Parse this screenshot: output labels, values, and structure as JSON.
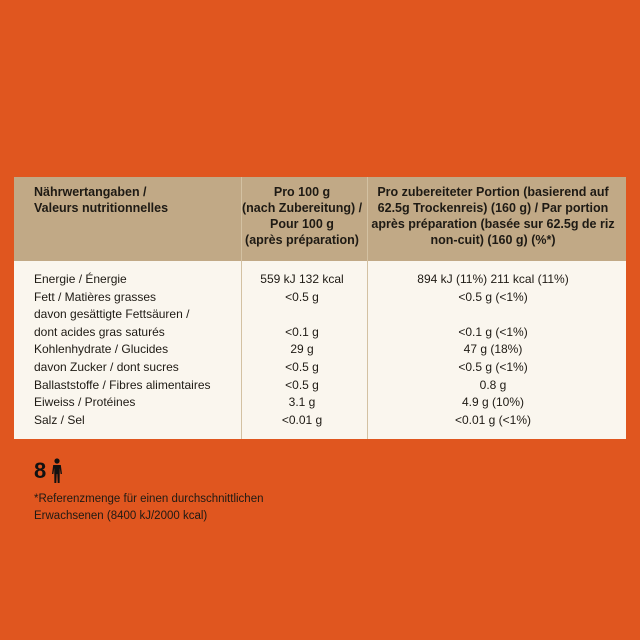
{
  "header": {
    "col1": [
      "Nährwertangaben /",
      "Valeurs nutritionnelles"
    ],
    "col2": [
      "Pro 100 g",
      "(nach Zubereitung) /",
      "Pour 100 g",
      "(après préparation)"
    ],
    "col3": [
      "Pro zubereiteter Portion (basierend auf",
      "62.5g Trockenreis) (160 g) / Par portion",
      "après préparation (basée sur 62.5g de riz",
      "non-cuit) (160 g) (%*)"
    ]
  },
  "rows": [
    {
      "name": "Energie / Énergie",
      "per100": "559 kJ 132 kcal",
      "portion": "894 kJ (11%) 211 kcal (11%)"
    },
    {
      "name": "Fett / Matières grasses",
      "per100": "<0.5 g",
      "portion": "<0.5 g (<1%)"
    },
    {
      "name": "davon gesättigte Fettsäuren /",
      "per100": "",
      "portion": ""
    },
    {
      "name": "dont acides gras saturés",
      "per100": "<0.1 g",
      "portion": "<0.1 g (<1%)"
    },
    {
      "name": "Kohlenhydrate / Glucides",
      "per100": "29 g",
      "portion": "47 g (18%)"
    },
    {
      "name": "davon Zucker / dont sucres",
      "per100": "<0.5 g",
      "portion": "<0.5 g (<1%)"
    },
    {
      "name": "Ballaststoffe / Fibres alimentaires",
      "per100": "<0.5 g",
      "portion": "0.8 g"
    },
    {
      "name": "Eiweiss / Protéines",
      "per100": "3.1 g",
      "portion": "4.9 g (10%)"
    },
    {
      "name": "Salz / Sel",
      "per100": "<0.01 g",
      "portion": "<0.01 g (<1%)"
    }
  ],
  "portions": {
    "count": "8",
    "icon": "person-icon"
  },
  "footnote": [
    "*Referenzmenge für einen durchschnittlichen",
    "Erwachsenen (8400 kJ/2000 kcal)"
  ],
  "colors": {
    "background": "#e0561f",
    "header": "#c1a986",
    "table": "#faf6ee"
  }
}
